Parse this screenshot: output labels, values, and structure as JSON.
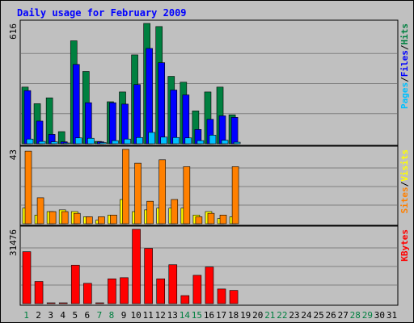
{
  "chart_data": {
    "type": "bar",
    "title": "Daily usage for February 2009",
    "categories": [
      "1",
      "2",
      "3",
      "4",
      "5",
      "6",
      "7",
      "8",
      "9",
      "10",
      "11",
      "12",
      "13",
      "14",
      "15",
      "16",
      "17",
      "18",
      "19",
      "20",
      "21",
      "22",
      "23",
      "24",
      "25",
      "26",
      "27",
      "28",
      "29",
      "30",
      "31"
    ],
    "weekend_days": [
      "1",
      "7",
      "8",
      "14",
      "15",
      "21",
      "22",
      "28",
      "29"
    ],
    "grid": true,
    "panels": [
      {
        "name": "hits-files-pages",
        "max_label": "616",
        "ylim": [
          0,
          616
        ],
        "side_labels": [
          {
            "text": "Pages",
            "color": "#00c0ff"
          },
          {
            "text": "/",
            "color": "#000000"
          },
          {
            "text": "Files",
            "color": "#0000ff"
          },
          {
            "text": "/",
            "color": "#000000"
          },
          {
            "text": "Hits",
            "color": "#008040"
          }
        ],
        "series": [
          {
            "name": "Hits",
            "color": "#008040",
            "values": [
              290,
              205,
              235,
              62,
              527,
              370,
              12,
              215,
              265,
              455,
              616,
              600,
              345,
              315,
              168,
              265,
              290,
              148,
              0,
              0,
              0,
              0,
              0,
              0,
              0,
              0,
              0,
              0,
              0,
              0,
              0
            ]
          },
          {
            "name": "Files",
            "color": "#0000ff",
            "values": [
              272,
              116,
              48,
              10,
              406,
              210,
              10,
              210,
              203,
              303,
              488,
              415,
              275,
              250,
              73,
              125,
              143,
              135,
              0,
              0,
              0,
              0,
              0,
              0,
              0,
              0,
              0,
              0,
              0,
              0,
              0
            ]
          },
          {
            "name": "Pages",
            "color": "#00c0ff",
            "values": [
              24,
              12,
              10,
              4,
              30,
              28,
              6,
              16,
              24,
              32,
              58,
              34,
              32,
              30,
              16,
              44,
              18,
              8,
              0,
              0,
              0,
              0,
              0,
              0,
              0,
              0,
              0,
              0,
              0,
              0,
              0
            ]
          }
        ]
      },
      {
        "name": "visits-sites",
        "max_label": "43",
        "ylim": [
          0,
          43
        ],
        "side_labels": [
          {
            "text": "Sites",
            "color": "#ff8000"
          },
          {
            "text": "/",
            "color": "#000000"
          },
          {
            "text": "Visits",
            "color": "#ffff00"
          }
        ],
        "series": [
          {
            "name": "Visits",
            "color": "#ffff00",
            "values": [
              9,
              5,
              7,
              8,
              7,
              4,
              2,
              5,
              14,
              7,
              8,
              9,
              9,
              9,
              5,
              7,
              3,
              4,
              0,
              0,
              0,
              0,
              0,
              0,
              0,
              0,
              0,
              0,
              0,
              0,
              0
            ]
          },
          {
            "name": "Sites",
            "color": "#ff8000",
            "values": [
              42,
              15,
              7,
              7,
              6,
              4,
              4,
              5,
              43,
              35,
              13,
              37,
              14,
              33,
              4,
              6,
              5,
              33,
              0,
              0,
              0,
              0,
              0,
              0,
              0,
              0,
              0,
              0,
              0,
              0,
              0
            ]
          }
        ]
      },
      {
        "name": "kbytes",
        "max_label": "31476",
        "ylim": [
          0,
          31476
        ],
        "side_labels": [
          {
            "text": "KBytes",
            "color": "#ff0000"
          }
        ],
        "series": [
          {
            "name": "KBytes",
            "color": "#ff0000",
            "values": [
              22000,
              9400,
              200,
              200,
              16300,
              8600,
              300,
              10500,
              11000,
              31476,
              23400,
              10500,
              16500,
              3400,
              12000,
              15500,
              6200,
              5600,
              0,
              0,
              0,
              0,
              0,
              0,
              0,
              0,
              0,
              0,
              0,
              0,
              0
            ]
          }
        ]
      }
    ]
  },
  "colors": {
    "background": "#c0c0c0",
    "title": "#0000ff",
    "weekday_label": "#000000",
    "weekend_label": "#008040",
    "gridline": "#808080"
  }
}
